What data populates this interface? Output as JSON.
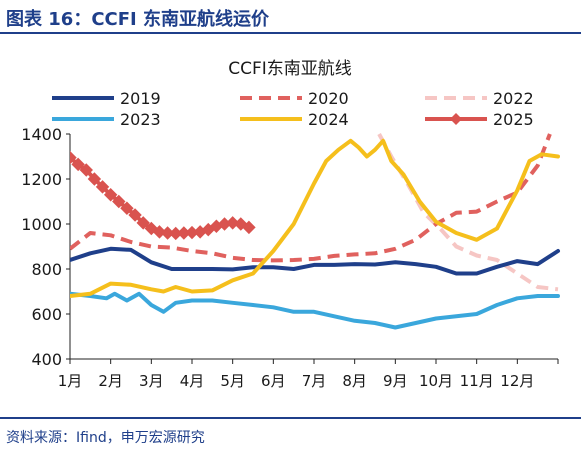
{
  "figure": {
    "title": "图表 16：CCFI 东南亚航线运价",
    "source": "资料来源：Ifind，申万宏源研究"
  },
  "chart_data": {
    "type": "line",
    "title": "CCFI东南亚航线",
    "xlabel": "",
    "ylabel": "",
    "categories": [
      "1月",
      "2月",
      "3月",
      "4月",
      "5月",
      "6月",
      "7月",
      "8月",
      "9月",
      "10月",
      "11月",
      "12月"
    ],
    "ylim": [
      400,
      1400
    ],
    "yticks": [
      400,
      600,
      800,
      1000,
      1200,
      1400
    ],
    "legend": "top",
    "grid": false,
    "series": [
      {
        "name": "2019",
        "color": "#1f3f8a",
        "dash": "solid",
        "points": [
          [
            1,
            840
          ],
          [
            1.5,
            870
          ],
          [
            2,
            890
          ],
          [
            2.5,
            885
          ],
          [
            3,
            830
          ],
          [
            3.5,
            800
          ],
          [
            4,
            800
          ],
          [
            4.5,
            800
          ],
          [
            5,
            798
          ],
          [
            5.5,
            808
          ],
          [
            6,
            808
          ],
          [
            6.5,
            800
          ],
          [
            7,
            818
          ],
          [
            7.5,
            818
          ],
          [
            8,
            822
          ],
          [
            8.5,
            820
          ],
          [
            9,
            830
          ],
          [
            9.5,
            822
          ],
          [
            10,
            810
          ],
          [
            10.5,
            780
          ],
          [
            11,
            780
          ],
          [
            11.5,
            810
          ],
          [
            12,
            835
          ],
          [
            12.5,
            822
          ],
          [
            13,
            880
          ]
        ]
      },
      {
        "name": "2020",
        "color": "#e0615e",
        "dash": "dashed",
        "points": [
          [
            1,
            890
          ],
          [
            1.5,
            960
          ],
          [
            2,
            950
          ],
          [
            2.5,
            920
          ],
          [
            3,
            900
          ],
          [
            3.5,
            895
          ],
          [
            4,
            880
          ],
          [
            4.5,
            870
          ],
          [
            5,
            850
          ],
          [
            5.5,
            840
          ],
          [
            6,
            838
          ],
          [
            6.5,
            840
          ],
          [
            7,
            845
          ],
          [
            7.5,
            858
          ],
          [
            8,
            865
          ],
          [
            8.5,
            870
          ],
          [
            9,
            890
          ],
          [
            9.5,
            930
          ],
          [
            10,
            1000
          ],
          [
            10.5,
            1050
          ],
          [
            11,
            1055
          ],
          [
            11.5,
            1100
          ],
          [
            12,
            1140
          ],
          [
            12.5,
            1260
          ],
          [
            12.8,
            1400
          ]
        ]
      },
      {
        "name": "2022",
        "color": "#f6c6c4",
        "dash": "dashed",
        "points": [
          [
            8.6,
            1400
          ],
          [
            8.9,
            1300
          ],
          [
            9.3,
            1180
          ],
          [
            9.7,
            1050
          ],
          [
            10.1,
            980
          ],
          [
            10.5,
            900
          ],
          [
            11,
            860
          ],
          [
            11.5,
            840
          ],
          [
            12,
            780
          ],
          [
            12.5,
            720
          ],
          [
            13,
            710
          ]
        ]
      },
      {
        "name": "2023",
        "color": "#3aa7dc",
        "dash": "solid",
        "points": [
          [
            1,
            690
          ],
          [
            1.5,
            680
          ],
          [
            1.9,
            670
          ],
          [
            2.1,
            690
          ],
          [
            2.4,
            660
          ],
          [
            2.7,
            690
          ],
          [
            3,
            640
          ],
          [
            3.3,
            610
          ],
          [
            3.6,
            650
          ],
          [
            4,
            660
          ],
          [
            4.5,
            660
          ],
          [
            5,
            650
          ],
          [
            5.5,
            640
          ],
          [
            6,
            630
          ],
          [
            6.5,
            610
          ],
          [
            7,
            610
          ],
          [
            7.5,
            590
          ],
          [
            8,
            570
          ],
          [
            8.5,
            560
          ],
          [
            9,
            540
          ],
          [
            9.5,
            560
          ],
          [
            10,
            580
          ],
          [
            10.5,
            590
          ],
          [
            11,
            600
          ],
          [
            11.5,
            640
          ],
          [
            12,
            670
          ],
          [
            12.5,
            680
          ],
          [
            13,
            680
          ]
        ]
      },
      {
        "name": "2024",
        "color": "#f5bf1c",
        "dash": "solid",
        "points": [
          [
            1,
            680
          ],
          [
            1.5,
            690
          ],
          [
            2,
            735
          ],
          [
            2.5,
            730
          ],
          [
            3,
            710
          ],
          [
            3.3,
            700
          ],
          [
            3.6,
            720
          ],
          [
            4,
            700
          ],
          [
            4.5,
            705
          ],
          [
            5,
            750
          ],
          [
            5.5,
            780
          ],
          [
            6,
            880
          ],
          [
            6.5,
            1000
          ],
          [
            7,
            1180
          ],
          [
            7.3,
            1280
          ],
          [
            7.6,
            1330
          ],
          [
            7.9,
            1370
          ],
          [
            8.1,
            1340
          ],
          [
            8.3,
            1300
          ],
          [
            8.5,
            1330
          ],
          [
            8.7,
            1370
          ],
          [
            8.9,
            1280
          ],
          [
            9.2,
            1220
          ],
          [
            9.6,
            1100
          ],
          [
            10,
            1010
          ],
          [
            10.5,
            960
          ],
          [
            11,
            930
          ],
          [
            11.5,
            980
          ],
          [
            12,
            1150
          ],
          [
            12.3,
            1280
          ],
          [
            12.6,
            1310
          ],
          [
            13,
            1300
          ]
        ]
      },
      {
        "name": "2025",
        "color": "#d9534f",
        "dash": "solid",
        "marker": "diamond",
        "points": [
          [
            1,
            1295
          ],
          [
            1.2,
            1265
          ],
          [
            1.4,
            1240
          ],
          [
            1.6,
            1200
          ],
          [
            1.8,
            1165
          ],
          [
            2,
            1130
          ],
          [
            2.2,
            1100
          ],
          [
            2.4,
            1070
          ],
          [
            2.6,
            1040
          ],
          [
            2.8,
            1005
          ],
          [
            3,
            980
          ],
          [
            3.2,
            965
          ],
          [
            3.4,
            960
          ],
          [
            3.6,
            958
          ],
          [
            3.8,
            960
          ],
          [
            4,
            962
          ],
          [
            4.2,
            965
          ],
          [
            4.4,
            975
          ],
          [
            4.6,
            990
          ],
          [
            4.8,
            1000
          ],
          [
            5,
            1005
          ],
          [
            5.2,
            1000
          ],
          [
            5.4,
            985
          ]
        ]
      }
    ]
  }
}
